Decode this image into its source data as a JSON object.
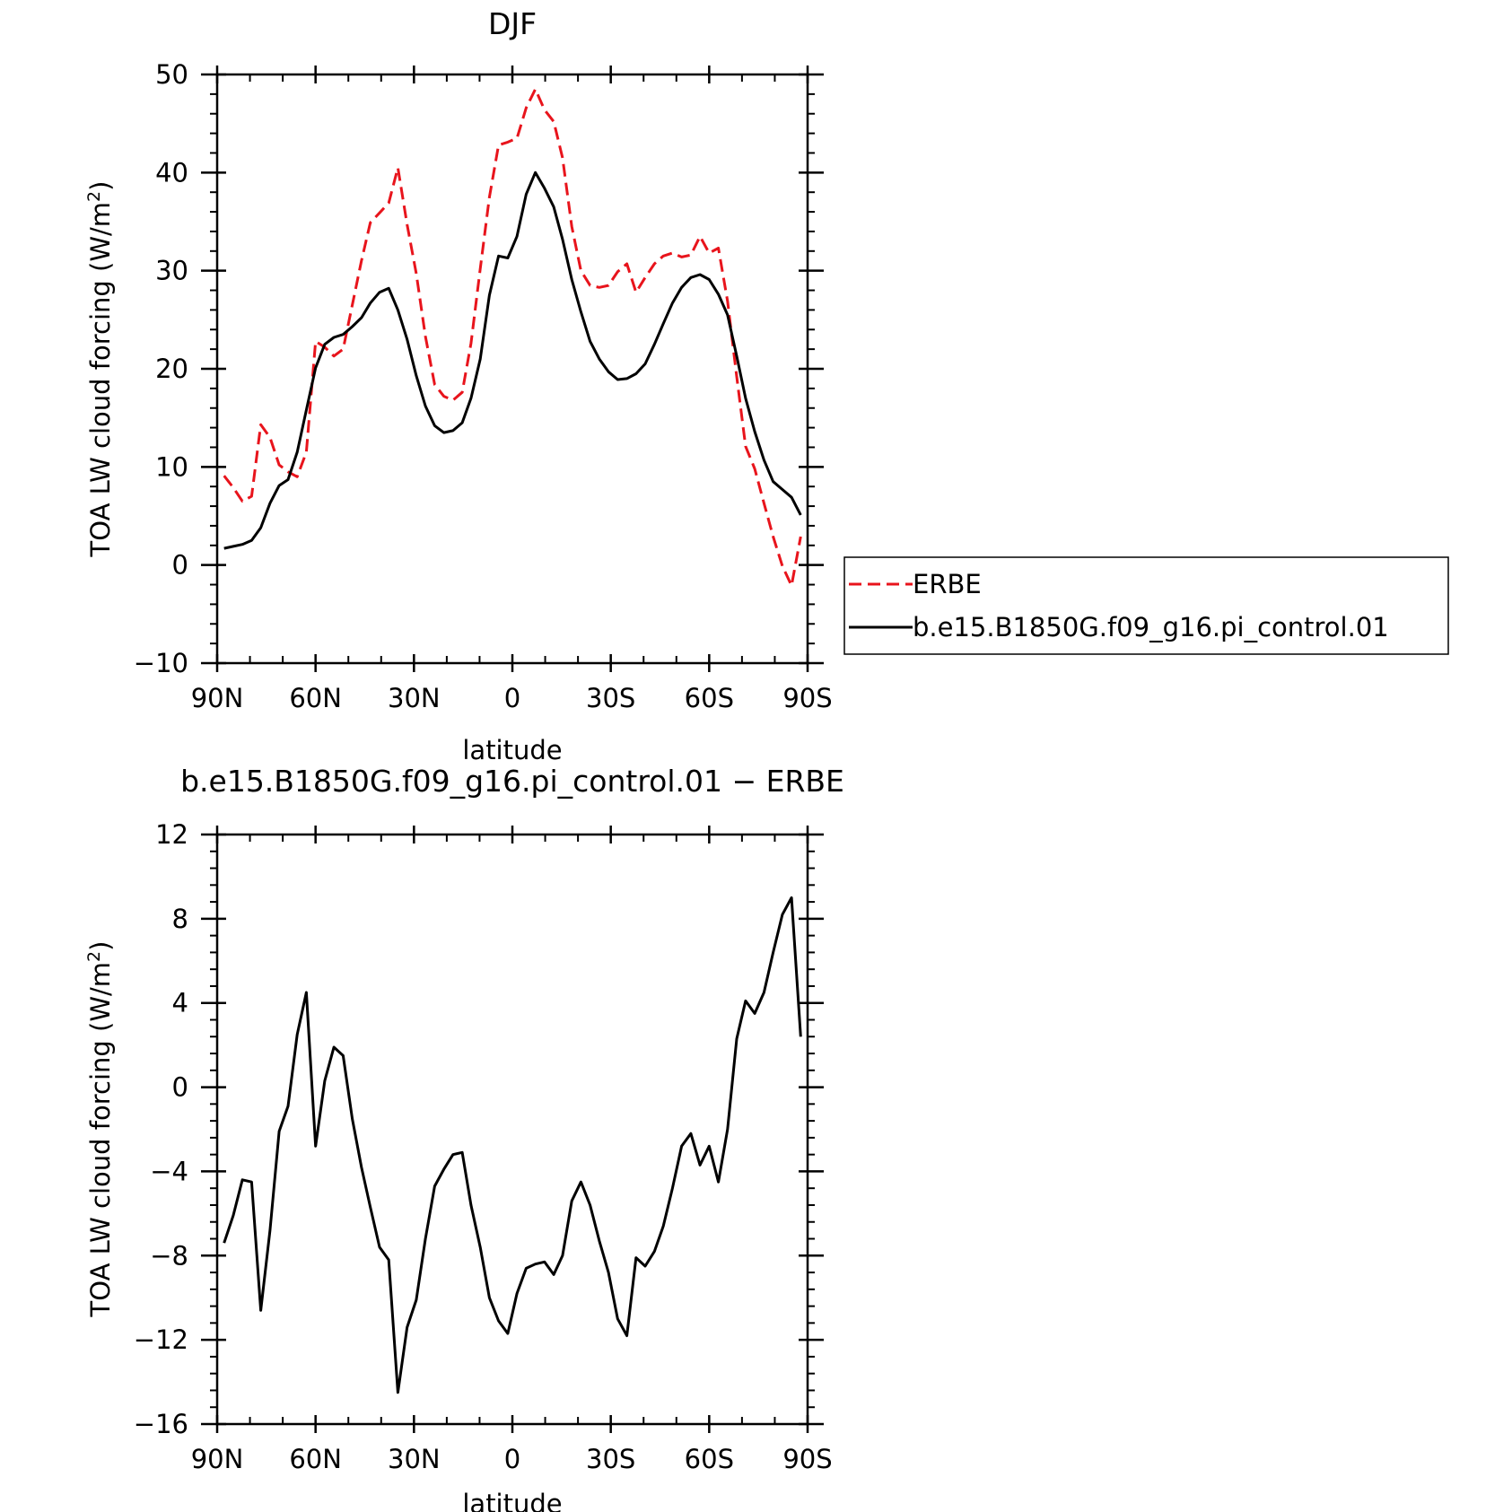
{
  "chart_data": [
    {
      "type": "line",
      "title": "DJF",
      "xlabel": "latitude",
      "ylabel": "TOA LW cloud forcing (W/m²)",
      "ylabel_main": "TOA LW cloud forcing (W/m",
      "ylabel_sup": "2",
      "ylabel_end": ")",
      "xlim": [
        90,
        -90
      ],
      "ylim": [
        -10,
        50
      ],
      "x_tick_labels": [
        "90N",
        "60N",
        "30N",
        "0",
        "30S",
        "60S",
        "90S"
      ],
      "x_ticks": [
        90,
        60,
        30,
        0,
        -30,
        -60,
        -90
      ],
      "y_ticks": [
        -10,
        0,
        10,
        20,
        30,
        40,
        50
      ],
      "y_tick_labels": [
        "−10",
        "0",
        "10",
        "20",
        "30",
        "40",
        "50"
      ],
      "grid": false,
      "legend_position": "right",
      "x": [
        87.9,
        85.1,
        82.3,
        79.5,
        76.7,
        73.9,
        71.1,
        68.4,
        65.6,
        62.8,
        60.0,
        57.2,
        54.4,
        51.6,
        48.8,
        46.0,
        43.3,
        40.5,
        37.7,
        34.9,
        32.1,
        29.3,
        26.5,
        23.7,
        20.9,
        18.1,
        15.3,
        12.6,
        9.8,
        7.0,
        4.2,
        1.4,
        -1.4,
        -4.2,
        -7.0,
        -9.8,
        -12.6,
        -15.3,
        -18.1,
        -20.9,
        -23.7,
        -26.5,
        -29.3,
        -32.1,
        -34.9,
        -37.7,
        -40.5,
        -43.3,
        -46.0,
        -48.8,
        -51.6,
        -54.4,
        -57.2,
        -60.0,
        -62.8,
        -65.6,
        -68.4,
        -71.1,
        -73.9,
        -76.7,
        -79.5,
        -82.3,
        -85.1,
        -87.9
      ],
      "series": [
        {
          "name": "ERBE",
          "color": "#e8141c",
          "style": "dashed",
          "values": [
            9.1,
            7.9,
            6.5,
            7.0,
            14.3,
            13.0,
            10.2,
            9.5,
            9.0,
            11.5,
            22.8,
            22.2,
            21.3,
            22.0,
            26.5,
            31.0,
            34.9,
            35.9,
            36.9,
            40.5,
            34.7,
            29.7,
            23.3,
            18.4,
            17.2,
            16.8,
            17.6,
            22.6,
            30.2,
            37.5,
            42.8,
            43.1,
            43.5,
            46.6,
            48.5,
            46.4,
            45.2,
            41.5,
            34.5,
            30.0,
            28.5,
            28.3,
            28.5,
            29.9,
            30.7,
            27.8,
            29.3,
            30.7,
            31.5,
            31.8,
            31.4,
            31.6,
            33.5,
            31.8,
            32.3,
            26.9,
            19.2,
            12.1,
            9.8,
            6.3,
            2.9,
            -0.1,
            -2.1,
            2.9
          ]
        },
        {
          "name": "b.e15.B1850G.f09_g16.pi_control.01",
          "color": "#000000",
          "style": "solid",
          "values": [
            1.7,
            1.9,
            2.1,
            2.5,
            3.8,
            6.3,
            8.1,
            8.7,
            11.5,
            15.8,
            20.1,
            22.5,
            23.2,
            23.5,
            24.3,
            25.2,
            26.7,
            27.8,
            28.2,
            26.0,
            23.0,
            19.3,
            16.2,
            14.2,
            13.5,
            13.7,
            14.5,
            17.0,
            21.0,
            27.5,
            31.5,
            31.3,
            33.5,
            37.8,
            40.0,
            38.4,
            36.5,
            33.2,
            29.1,
            25.8,
            22.8,
            21.0,
            19.7,
            18.9,
            19.0,
            19.5,
            20.5,
            22.5,
            24.6,
            26.7,
            28.3,
            29.3,
            29.6,
            29.1,
            27.6,
            25.5,
            21.3,
            17.0,
            13.6,
            10.7,
            8.5,
            7.7,
            6.9,
            5.1
          ]
        }
      ]
    },
    {
      "type": "line",
      "title": "b.e15.B1850G.f09_g16.pi_control.01 − ERBE",
      "xlabel": "latitude",
      "ylabel": "TOA LW cloud forcing (W/m²)",
      "ylabel_main": "TOA LW cloud forcing (W/m",
      "ylabel_sup": "2",
      "ylabel_end": ")",
      "xlim": [
        90,
        -90
      ],
      "ylim": [
        -16,
        12
      ],
      "x_tick_labels": [
        "90N",
        "60N",
        "30N",
        "0",
        "30S",
        "60S",
        "90S"
      ],
      "x_ticks": [
        90,
        60,
        30,
        0,
        -30,
        -60,
        -90
      ],
      "y_ticks": [
        -16,
        -12,
        -8,
        -4,
        0,
        4,
        8,
        12
      ],
      "y_tick_labels": [
        "−16",
        "−12",
        "−8",
        "−4",
        "0",
        "4",
        "8",
        "12"
      ],
      "grid": false,
      "x": [
        87.9,
        85.1,
        82.3,
        79.5,
        76.7,
        73.9,
        71.1,
        68.4,
        65.6,
        62.8,
        60.0,
        57.2,
        54.4,
        51.6,
        48.8,
        46.0,
        43.3,
        40.5,
        37.7,
        34.9,
        32.1,
        29.3,
        26.5,
        23.7,
        20.9,
        18.1,
        15.3,
        12.6,
        9.8,
        7.0,
        4.2,
        1.4,
        -1.4,
        -4.2,
        -7.0,
        -9.8,
        -12.6,
        -15.3,
        -18.1,
        -20.9,
        -23.7,
        -26.5,
        -29.3,
        -32.1,
        -34.9,
        -37.7,
        -40.5,
        -43.3,
        -46.0,
        -48.8,
        -51.6,
        -54.4,
        -57.2,
        -60.0,
        -62.8,
        -65.6,
        -68.4,
        -71.1,
        -73.9,
        -76.7,
        -79.5,
        -82.3,
        -85.1,
        -87.9
      ],
      "series": [
        {
          "name": "",
          "color": "#000000",
          "style": "solid",
          "values": [
            -7.4,
            -6.1,
            -4.4,
            -4.5,
            -10.6,
            -6.8,
            -2.1,
            -0.9,
            2.5,
            4.5,
            -2.8,
            0.3,
            1.9,
            1.5,
            -1.5,
            -3.8,
            -5.7,
            -7.6,
            -8.2,
            -14.5,
            -11.4,
            -10.1,
            -7.2,
            -4.7,
            -3.9,
            -3.2,
            -3.1,
            -5.6,
            -7.6,
            -10.0,
            -11.1,
            -11.7,
            -9.8,
            -8.6,
            -8.4,
            -8.3,
            -8.9,
            -8.0,
            -5.4,
            -4.5,
            -5.6,
            -7.3,
            -8.8,
            -11.0,
            -11.8,
            -8.1,
            -8.5,
            -7.8,
            -6.6,
            -4.8,
            -2.8,
            -2.2,
            -3.7,
            -2.8,
            -4.5,
            -2.0,
            2.3,
            4.1,
            3.5,
            4.5,
            6.4,
            8.2,
            9.0,
            2.4
          ]
        }
      ]
    }
  ]
}
